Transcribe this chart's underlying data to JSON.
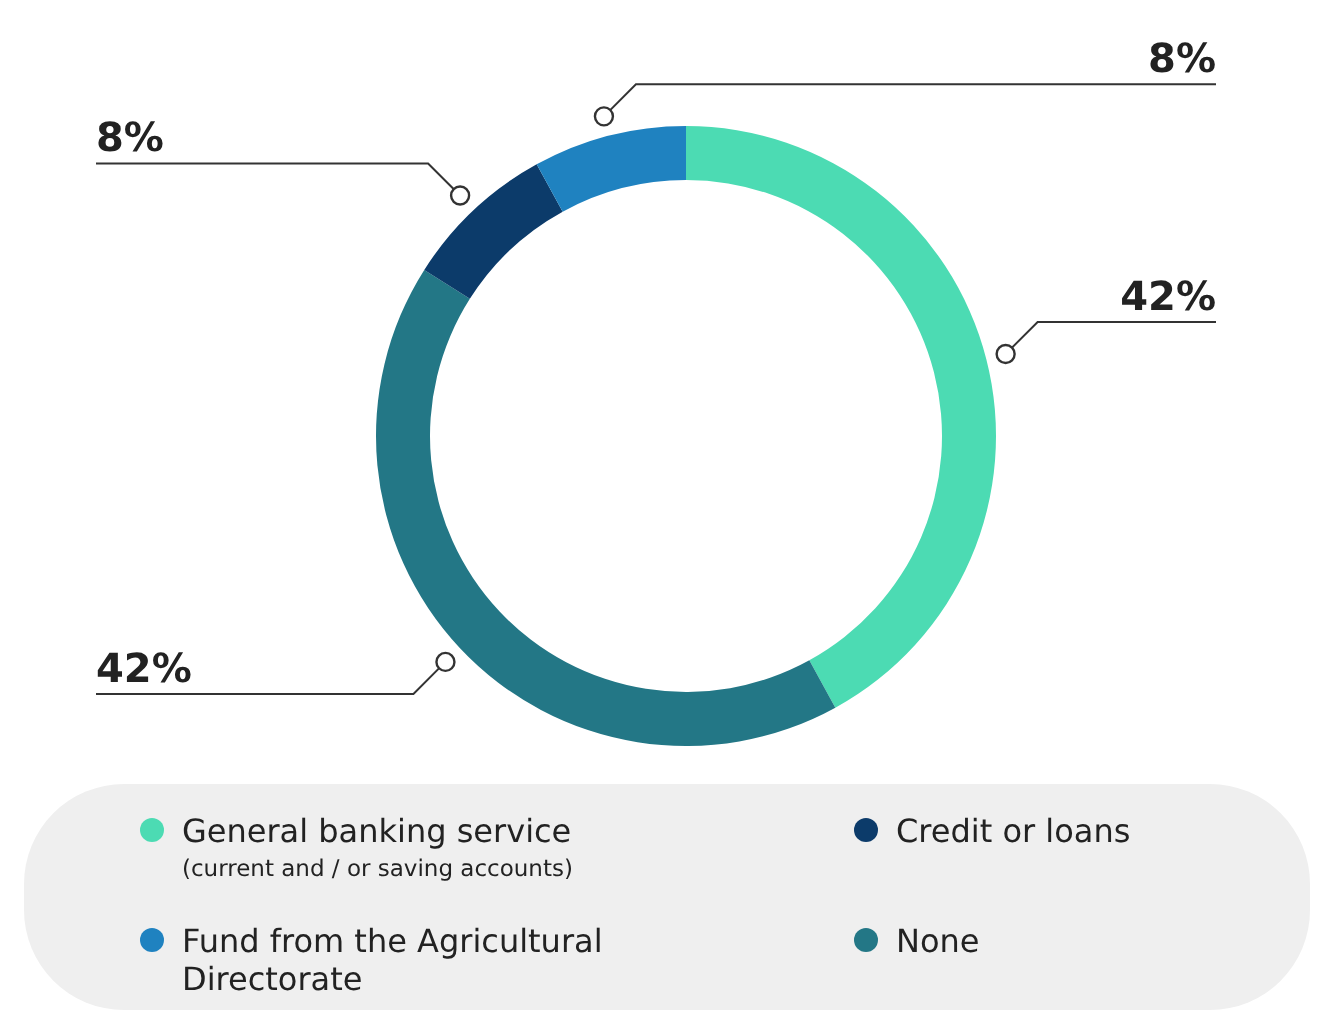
{
  "chart_data": {
    "type": "donut",
    "categories": [
      "General banking service\n(current and / or saving accounts)",
      "None",
      "Credit or loans",
      "Fund from the Agricultural Directorate"
    ],
    "values": [
      42,
      42,
      8,
      8
    ],
    "colors": [
      "#4cdbb3",
      "#237786",
      "#0c3b6a",
      "#1f82c0"
    ],
    "value_labels": [
      "42%",
      "42%",
      "8%",
      "8%"
    ],
    "legend": "bottom"
  }
}
